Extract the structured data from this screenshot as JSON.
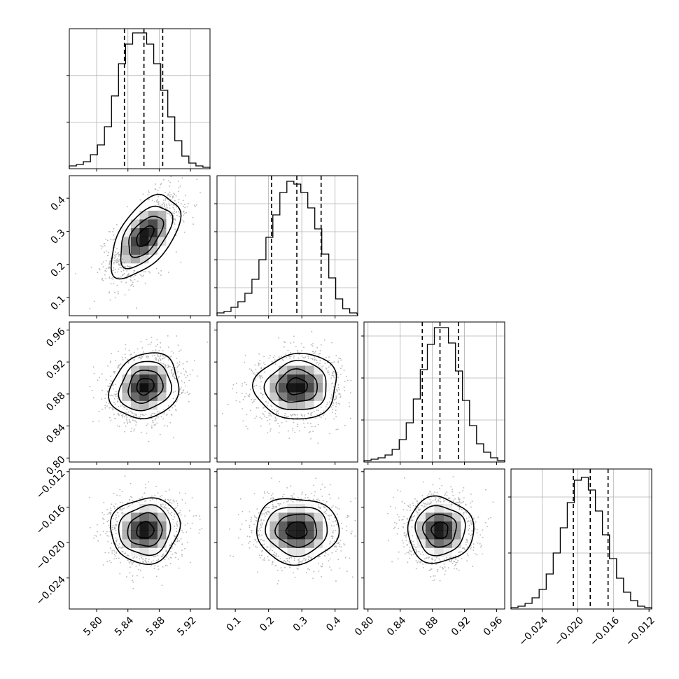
{
  "chart_data": {
    "type": "corner",
    "title": "",
    "parameters": [
      {
        "name": "",
        "range": [
          5.765,
          5.945
        ],
        "ticks": [
          5.8,
          5.84,
          5.88,
          5.92
        ],
        "tick_labels": [
          "5.80",
          "5.84",
          "5.88",
          "5.92"
        ],
        "quantiles": [
          5.8355,
          5.8605,
          5.8845
        ],
        "hist_bin_width": 0.009,
        "hist_start": 5.765,
        "hist_values": [
          2,
          3,
          5,
          10,
          17,
          30,
          52,
          75,
          89,
          97,
          97,
          89,
          75,
          56,
          37,
          20,
          9,
          4,
          2,
          1
        ],
        "hist_grid": [
          33.3,
          66.6
        ]
      },
      {
        "name": "",
        "range": [
          0.045,
          0.468
        ],
        "ticks": [
          0.1,
          0.2,
          0.3,
          0.4
        ],
        "tick_labels": [
          "0.1",
          "0.2",
          "0.3",
          "0.4"
        ],
        "quantiles": [
          0.209,
          0.285,
          0.358
        ],
        "hist_bin_width": 0.021,
        "hist_start": 0.045,
        "hist_values": [
          2,
          3,
          6,
          10,
          16,
          26,
          40,
          56,
          72,
          88,
          96,
          94,
          88,
          77,
          62,
          44,
          27,
          12,
          5,
          2
        ],
        "hist_grid": [
          20,
          40,
          60,
          80
        ]
      },
      {
        "name": "",
        "range": [
          0.795,
          0.97
        ],
        "ticks": [
          0.8,
          0.84,
          0.88,
          0.92,
          0.96
        ],
        "tick_labels": [
          "0.80",
          "0.84",
          "0.88",
          "0.92",
          "0.96"
        ],
        "quantiles": [
          0.8675,
          0.8895,
          0.9125
        ],
        "hist_bin_width": 0.00875,
        "hist_start": 0.795,
        "hist_values": [
          1,
          2,
          3,
          5,
          9,
          16,
          28,
          45,
          66,
          84,
          96,
          96,
          85,
          65,
          44,
          26,
          13,
          7,
          3,
          1
        ],
        "hist_grid": [
          30,
          60,
          90
        ]
      },
      {
        "name": "",
        "range": [
          -0.0275,
          -0.0117
        ],
        "ticks": [
          -0.024,
          -0.02,
          -0.016,
          -0.012
        ],
        "tick_labels": [
          "−0.024",
          "−0.020",
          "−0.016",
          "−0.012"
        ],
        "quantiles": [
          -0.0205,
          -0.0186,
          -0.0166
        ],
        "hist_bin_width": 0.00079,
        "hist_start": -0.0275,
        "hist_values": [
          1,
          2,
          4,
          8,
          14,
          25,
          40,
          58,
          76,
          92,
          94,
          85,
          70,
          53,
          36,
          22,
          12,
          6,
          2,
          1
        ],
        "hist_grid": [
          40,
          80
        ]
      }
    ],
    "pairs": [
      {
        "row": 1,
        "col": 0,
        "mean": [
          5.862,
          0.285
        ],
        "sd": [
          0.022,
          0.062
        ],
        "corr": 0.55
      },
      {
        "row": 2,
        "col": 0,
        "mean": [
          5.862,
          0.8895
        ],
        "sd": [
          0.022,
          0.0205
        ],
        "corr": 0.15
      },
      {
        "row": 2,
        "col": 1,
        "mean": [
          0.285,
          0.8895
        ],
        "sd": [
          0.062,
          0.0205
        ],
        "corr": 0.05
      },
      {
        "row": 3,
        "col": 0,
        "mean": [
          5.862,
          -0.0186
        ],
        "sd": [
          0.022,
          0.00185
        ],
        "corr": 0.05
      },
      {
        "row": 3,
        "col": 1,
        "mean": [
          0.285,
          -0.0186
        ],
        "sd": [
          0.062,
          0.00185
        ],
        "corr": 0.0
      },
      {
        "row": 3,
        "col": 2,
        "mean": [
          0.8895,
          -0.0186
        ],
        "sd": [
          0.0205,
          0.00185
        ],
        "corr": 0.0
      }
    ],
    "contour_levels_sigma": [
      0.5,
      1.0,
      1.5,
      2.0
    ],
    "grid": true,
    "colors": {
      "contour": "#000000",
      "samples": "#b0b0b0",
      "density": "#000000",
      "quantile_line": "#000000"
    }
  }
}
